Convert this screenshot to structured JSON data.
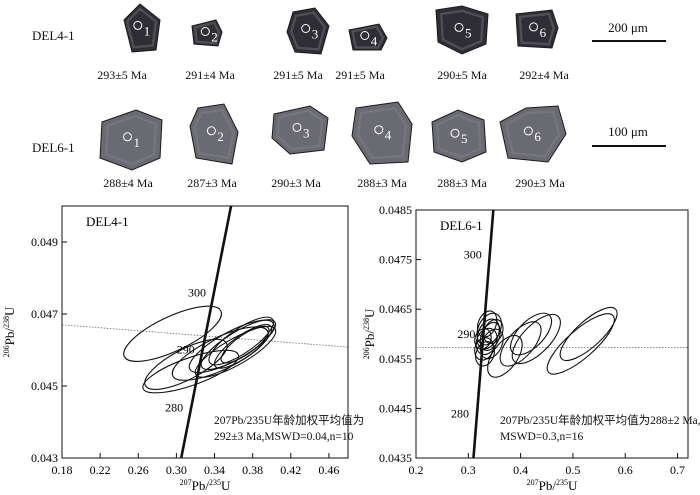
{
  "row1": {
    "sample": "DEL4-1",
    "grains": [
      {
        "num": "1",
        "age": "293±5 Ma"
      },
      {
        "num": "2",
        "age": "291±4 Ma"
      },
      {
        "num": "3",
        "age": "291±5 Ma"
      },
      {
        "num": "4",
        "age": "291±5 Ma"
      },
      {
        "num": "5",
        "age": "290±5 Ma"
      },
      {
        "num": "6",
        "age": "292±4 Ma"
      }
    ],
    "scale": "200 μm"
  },
  "row2": {
    "sample": "DEL6-1",
    "grains": [
      {
        "num": "1",
        "age": "288±4 Ma"
      },
      {
        "num": "2",
        "age": "287±3 Ma"
      },
      {
        "num": "3",
        "age": "290±3 Ma"
      },
      {
        "num": "4",
        "age": "288±3 Ma"
      },
      {
        "num": "5",
        "age": "288±3 Ma"
      },
      {
        "num": "6",
        "age": "290±3 Ma"
      }
    ],
    "scale": "100 μm"
  },
  "chart_data": [
    {
      "type": "scatter",
      "title": "DEL4-1",
      "xlabel": "207Pb/235U",
      "ylabel": "206Pb/238U",
      "xlim": [
        0.18,
        0.48
      ],
      "ylim": [
        0.043,
        0.05
      ],
      "xticks": [
        "0.18",
        "0.22",
        "0.26",
        "0.30",
        "0.34",
        "0.38",
        "0.42",
        "0.46"
      ],
      "yticks": [
        "0.043",
        "0.045",
        "0.047",
        "0.049"
      ],
      "concordia_labels": [
        {
          "label": "280",
          "x": 0.3155,
          "y": 0.0444
        },
        {
          "label": "290",
          "x": 0.3276,
          "y": 0.04602
        },
        {
          "label": "300",
          "x": 0.3394,
          "y": 0.0476
        }
      ],
      "weighted_mean_line": [
        [
          0.18,
          0.0467
        ],
        [
          0.48,
          0.04608
        ]
      ],
      "ellipses": [
        {
          "x": 0.296,
          "y": 0.04645,
          "rx": 0.056,
          "ry": 0.00048,
          "tilt": 0.44
        },
        {
          "x": 0.31,
          "y": 0.0456,
          "rx": 0.048,
          "ry": 0.00042,
          "tilt": 0.48
        },
        {
          "x": 0.315,
          "y": 0.0454,
          "rx": 0.053,
          "ry": 0.00038,
          "tilt": 0.34
        },
        {
          "x": 0.346,
          "y": 0.0459,
          "rx": 0.055,
          "ry": 0.00045,
          "tilt": 0.44
        },
        {
          "x": 0.358,
          "y": 0.0461,
          "rx": 0.05,
          "ry": 0.0004,
          "tilt": 0.5
        },
        {
          "x": 0.362,
          "y": 0.04595,
          "rx": 0.048,
          "ry": 0.00036,
          "tilt": 0.52
        },
        {
          "x": 0.365,
          "y": 0.04615,
          "rx": 0.045,
          "ry": 0.00035,
          "tilt": 0.55
        },
        {
          "x": 0.368,
          "y": 0.04625,
          "rx": 0.04,
          "ry": 0.00034,
          "tilt": 0.6
        },
        {
          "x": 0.37,
          "y": 0.0461,
          "rx": 0.036,
          "ry": 0.0003,
          "tilt": 0.62
        },
        {
          "x": 0.372,
          "y": 0.04615,
          "rx": 0.03,
          "ry": 0.00026,
          "tilt": 0.62
        }
      ],
      "annotation": {
        "line1": "207Pb/235U年龄加权平均值为",
        "line2": "292±3 Ma,MSWD=0.04,n=10"
      }
    },
    {
      "type": "scatter",
      "title": "DEL6-1",
      "xlabel": "207Pb/235U",
      "ylabel": "206Pb/238U",
      "xlim": [
        0.2,
        0.72
      ],
      "ylim": [
        0.0435,
        0.0485
      ],
      "xticks": [
        "0.2",
        "0.3",
        "0.4",
        "0.5",
        "0.6",
        "0.7"
      ],
      "yticks": [
        "0.0435",
        "0.0445",
        "0.0455",
        "0.0465",
        "0.0475",
        "0.0485"
      ],
      "concordia_labels": [
        {
          "label": "280",
          "x": 0.3167,
          "y": 0.0444
        },
        {
          "label": "290",
          "x": 0.3289,
          "y": 0.046
        },
        {
          "label": "300",
          "x": 0.341,
          "y": 0.0476
        }
      ],
      "weighted_mean_line": [
        [
          0.2,
          0.04573
        ],
        [
          0.72,
          0.04573
        ]
      ],
      "ellipses": [
        {
          "x": 0.33,
          "y": 0.0457,
          "rx": 0.022,
          "ry": 0.00018,
          "tilt": 1.2
        },
        {
          "x": 0.335,
          "y": 0.04585,
          "rx": 0.026,
          "ry": 0.0002,
          "tilt": 1.18
        },
        {
          "x": 0.338,
          "y": 0.046,
          "rx": 0.03,
          "ry": 0.0002,
          "tilt": 1.15
        },
        {
          "x": 0.34,
          "y": 0.0461,
          "rx": 0.032,
          "ry": 0.00022,
          "tilt": 1.12
        },
        {
          "x": 0.342,
          "y": 0.04595,
          "rx": 0.028,
          "ry": 0.00018,
          "tilt": 1.18
        },
        {
          "x": 0.332,
          "y": 0.0456,
          "rx": 0.024,
          "ry": 0.00018,
          "tilt": 1.22
        },
        {
          "x": 0.345,
          "y": 0.0458,
          "rx": 0.03,
          "ry": 0.0002,
          "tilt": 1.1
        },
        {
          "x": 0.336,
          "y": 0.0462,
          "rx": 0.026,
          "ry": 0.00018,
          "tilt": 1.2
        },
        {
          "x": 0.328,
          "y": 0.0459,
          "rx": 0.02,
          "ry": 0.00016,
          "tilt": 1.25
        },
        {
          "x": 0.348,
          "y": 0.04605,
          "rx": 0.024,
          "ry": 0.00018,
          "tilt": 1.15
        },
        {
          "x": 0.37,
          "y": 0.04555,
          "rx": 0.046,
          "ry": 0.00025,
          "tilt": 0.95
        },
        {
          "x": 0.4,
          "y": 0.0458,
          "rx": 0.052,
          "ry": 0.00026,
          "tilt": 0.85
        },
        {
          "x": 0.42,
          "y": 0.046,
          "rx": 0.05,
          "ry": 0.00026,
          "tilt": 0.8
        },
        {
          "x": 0.43,
          "y": 0.0459,
          "rx": 0.06,
          "ry": 0.00028,
          "tilt": 0.8
        },
        {
          "x": 0.515,
          "y": 0.0458,
          "rx": 0.082,
          "ry": 0.00028,
          "tilt": 0.72
        },
        {
          "x": 0.53,
          "y": 0.046,
          "rx": 0.07,
          "ry": 0.00026,
          "tilt": 0.74
        }
      ],
      "annotation": {
        "line1": "207Pb/235U年龄加权平均值为288±2 Ma,",
        "line2": "MSWD=0.3,n=16"
      }
    }
  ],
  "colors": {
    "ink": "#111111",
    "grain_dark": "#2e2e34",
    "grain_mid": "#6a6a72"
  }
}
